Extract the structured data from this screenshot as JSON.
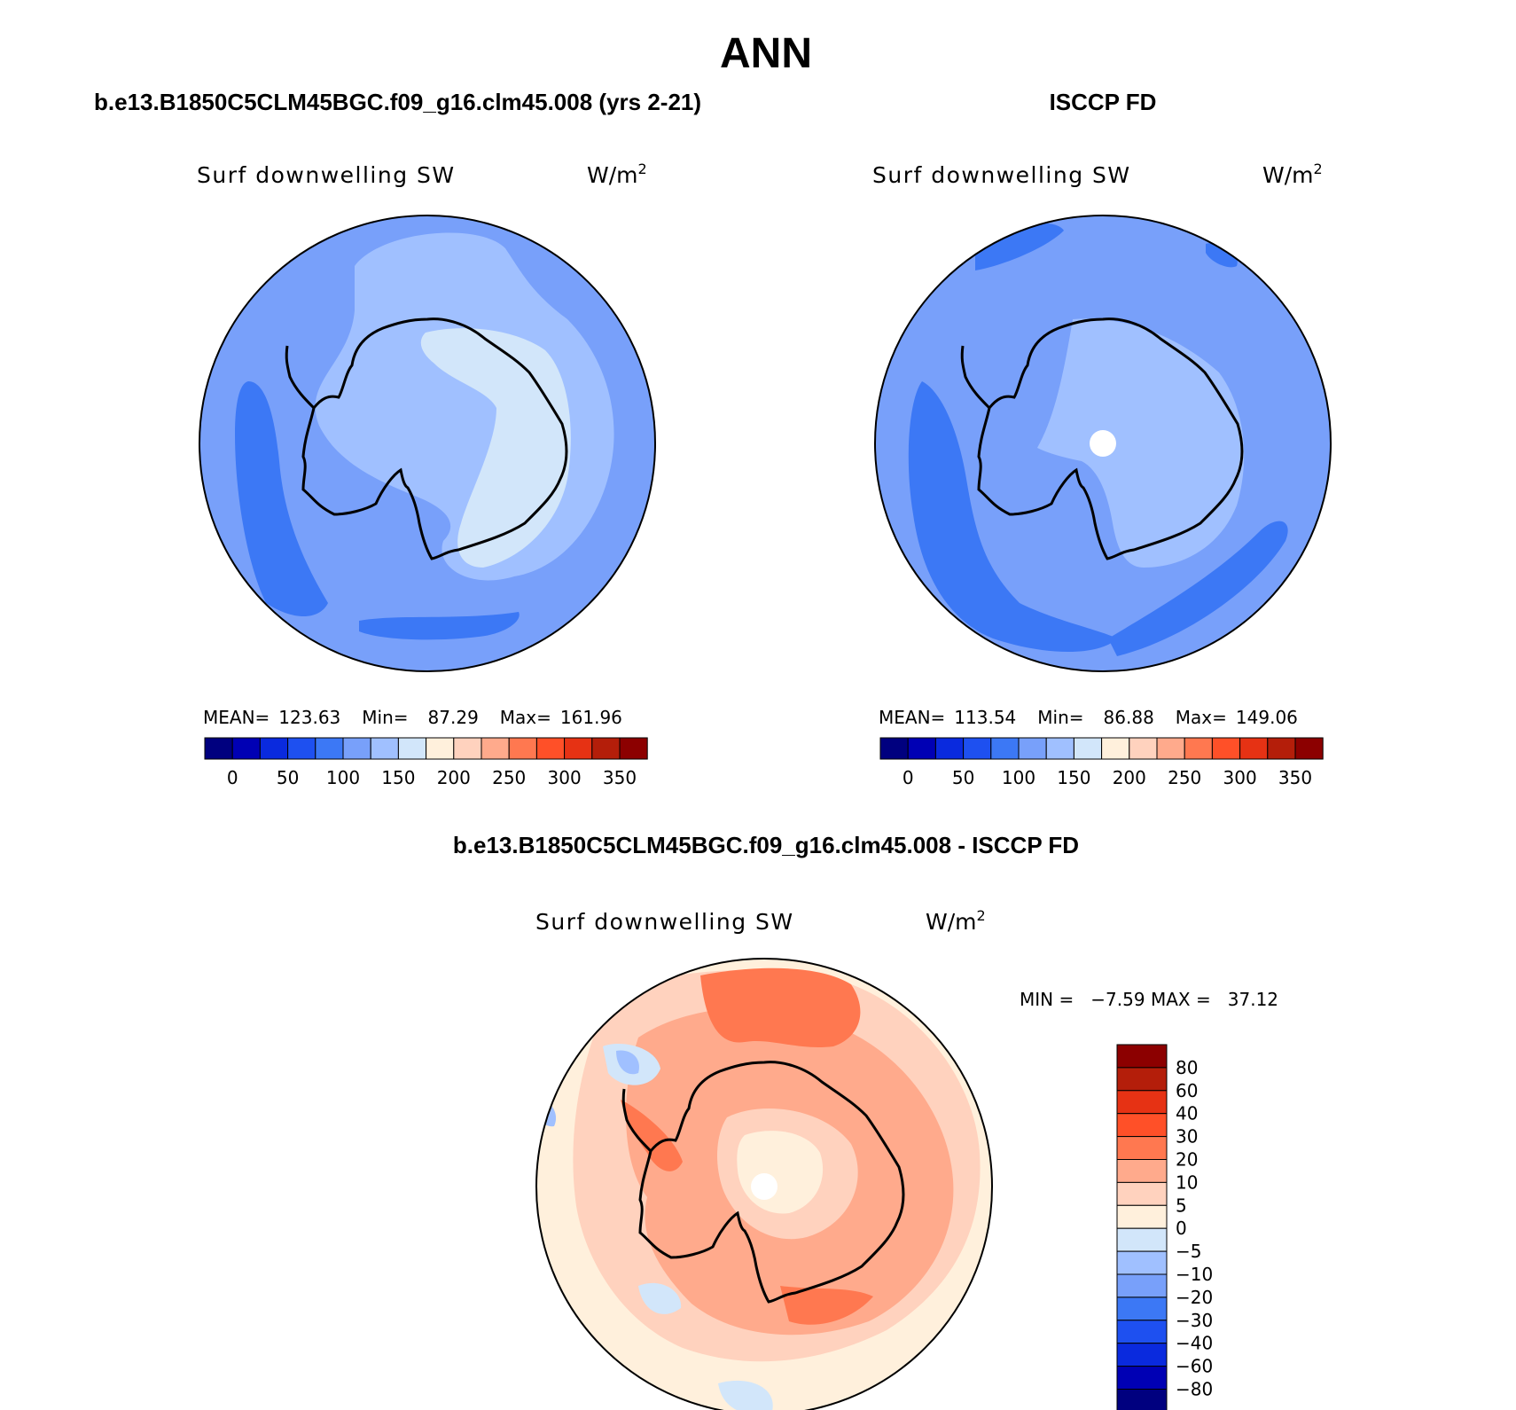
{
  "figure": {
    "season": "ANN",
    "panels": [
      {
        "id": "model",
        "case_title": "b.e13.B1850C5CLM45BGC.f09_g16.clm45.008 (yrs 2-21)",
        "variable": "Surf downwelling SW",
        "units_base": "W/m",
        "units_exp": "2",
        "stats": {
          "mean_label": "MEAN=",
          "mean": "123.63",
          "min_label": "Min=",
          "min": "87.29",
          "max_label": "Max=",
          "max": "161.96"
        }
      },
      {
        "id": "obs",
        "case_title": "ISCCP FD",
        "variable": "Surf downwelling SW",
        "units_base": "W/m",
        "units_exp": "2",
        "stats": {
          "mean_label": "MEAN=",
          "mean": "113.54",
          "min_label": "Min=",
          "min": "86.88",
          "max_label": "Max=",
          "max": "149.06"
        }
      }
    ],
    "abs_colorbar": {
      "colors": [
        "#00007f",
        "#0000b4",
        "#0a2ade",
        "#1e50f0",
        "#3c78f5",
        "#78a0fa",
        "#a0c0ff",
        "#d2e6fa",
        "#fff0dc",
        "#ffd2be",
        "#ffaa8c",
        "#ff7850",
        "#ff5028",
        "#e63214",
        "#b41e0a",
        "#8c0000"
      ],
      "tick_labels": [
        "0",
        "50",
        "100",
        "150",
        "200",
        "250",
        "300",
        "350"
      ]
    },
    "diff_panel": {
      "title": "b.e13.B1850C5CLM45BGC.f09_g16.clm45.008 - ISCCP FD",
      "variable": "Surf downwelling SW",
      "units_base": "W/m",
      "units_exp": "2",
      "minmax": "MIN =   −7.59 MAX =   37.12"
    },
    "diff_colorbar": {
      "colors_top_to_bottom": [
        "#8c0000",
        "#b41e0a",
        "#e63214",
        "#ff5028",
        "#ff7850",
        "#ffaa8c",
        "#ffd2be",
        "#fff0dc",
        "#d2e6fa",
        "#a0c0ff",
        "#78a0fa",
        "#3c78f5",
        "#1e50f0",
        "#0a2ade",
        "#0000b4",
        "#00007f"
      ],
      "tick_labels_top_to_bottom": [
        "80",
        "60",
        "40",
        "30",
        "20",
        "10",
        "5",
        "0",
        "−5",
        "−10",
        "−20",
        "−30",
        "−40",
        "−60",
        "−80"
      ]
    }
  }
}
